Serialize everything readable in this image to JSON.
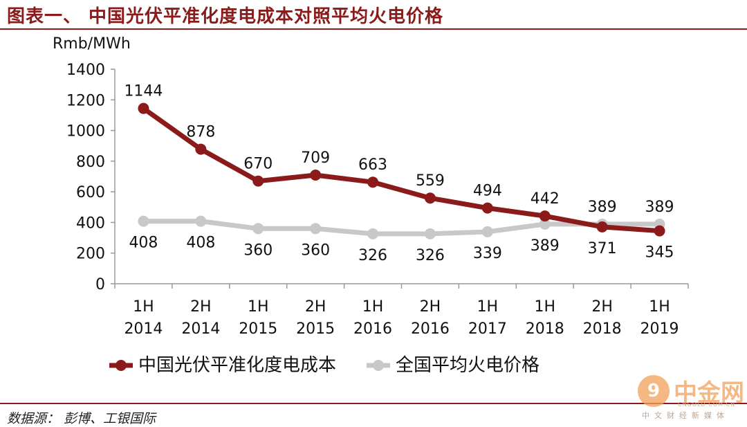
{
  "title": "图表一、 中国光伏平准化度电成本对照平均火电价格",
  "source": "数据源： 彭博、工银国际",
  "watermark": {
    "symbol": "9",
    "name": "中金网",
    "domain": "CNGOLD.COM.CN",
    "tagline": "中文财经新媒体"
  },
  "chart_data": {
    "type": "line",
    "ylabel": "Rmb/MWh",
    "ylim": [
      0,
      1400
    ],
    "yticks": [
      0,
      200,
      400,
      600,
      800,
      1000,
      1200,
      1400
    ],
    "categories": [
      [
        "1H",
        "2014"
      ],
      [
        "2H",
        "2014"
      ],
      [
        "1H",
        "2015"
      ],
      [
        "2H",
        "2015"
      ],
      [
        "1H",
        "2016"
      ],
      [
        "2H",
        "2016"
      ],
      [
        "1H",
        "2017"
      ],
      [
        "1H",
        "2018"
      ],
      [
        "2H",
        "2018"
      ],
      [
        "1H",
        "2019"
      ]
    ],
    "legend_position": "bottom",
    "grid": false,
    "series": [
      {
        "name": "中国光伏平准化度电成本",
        "color": "#8b1a1a",
        "values": [
          1144,
          878,
          670,
          709,
          663,
          559,
          494,
          442,
          371,
          345
        ],
        "label_position": [
          "above",
          "above",
          "above",
          "above",
          "above",
          "above",
          "above",
          "above",
          "below",
          "below"
        ]
      },
      {
        "name": "全国平均火电价格",
        "color": "#c8c8c8",
        "values": [
          408,
          408,
          360,
          360,
          326,
          326,
          339,
          389,
          389,
          389
        ],
        "label_position": [
          "below",
          "below",
          "below",
          "below",
          "below",
          "below",
          "below",
          "below",
          "above",
          "above"
        ]
      }
    ]
  }
}
